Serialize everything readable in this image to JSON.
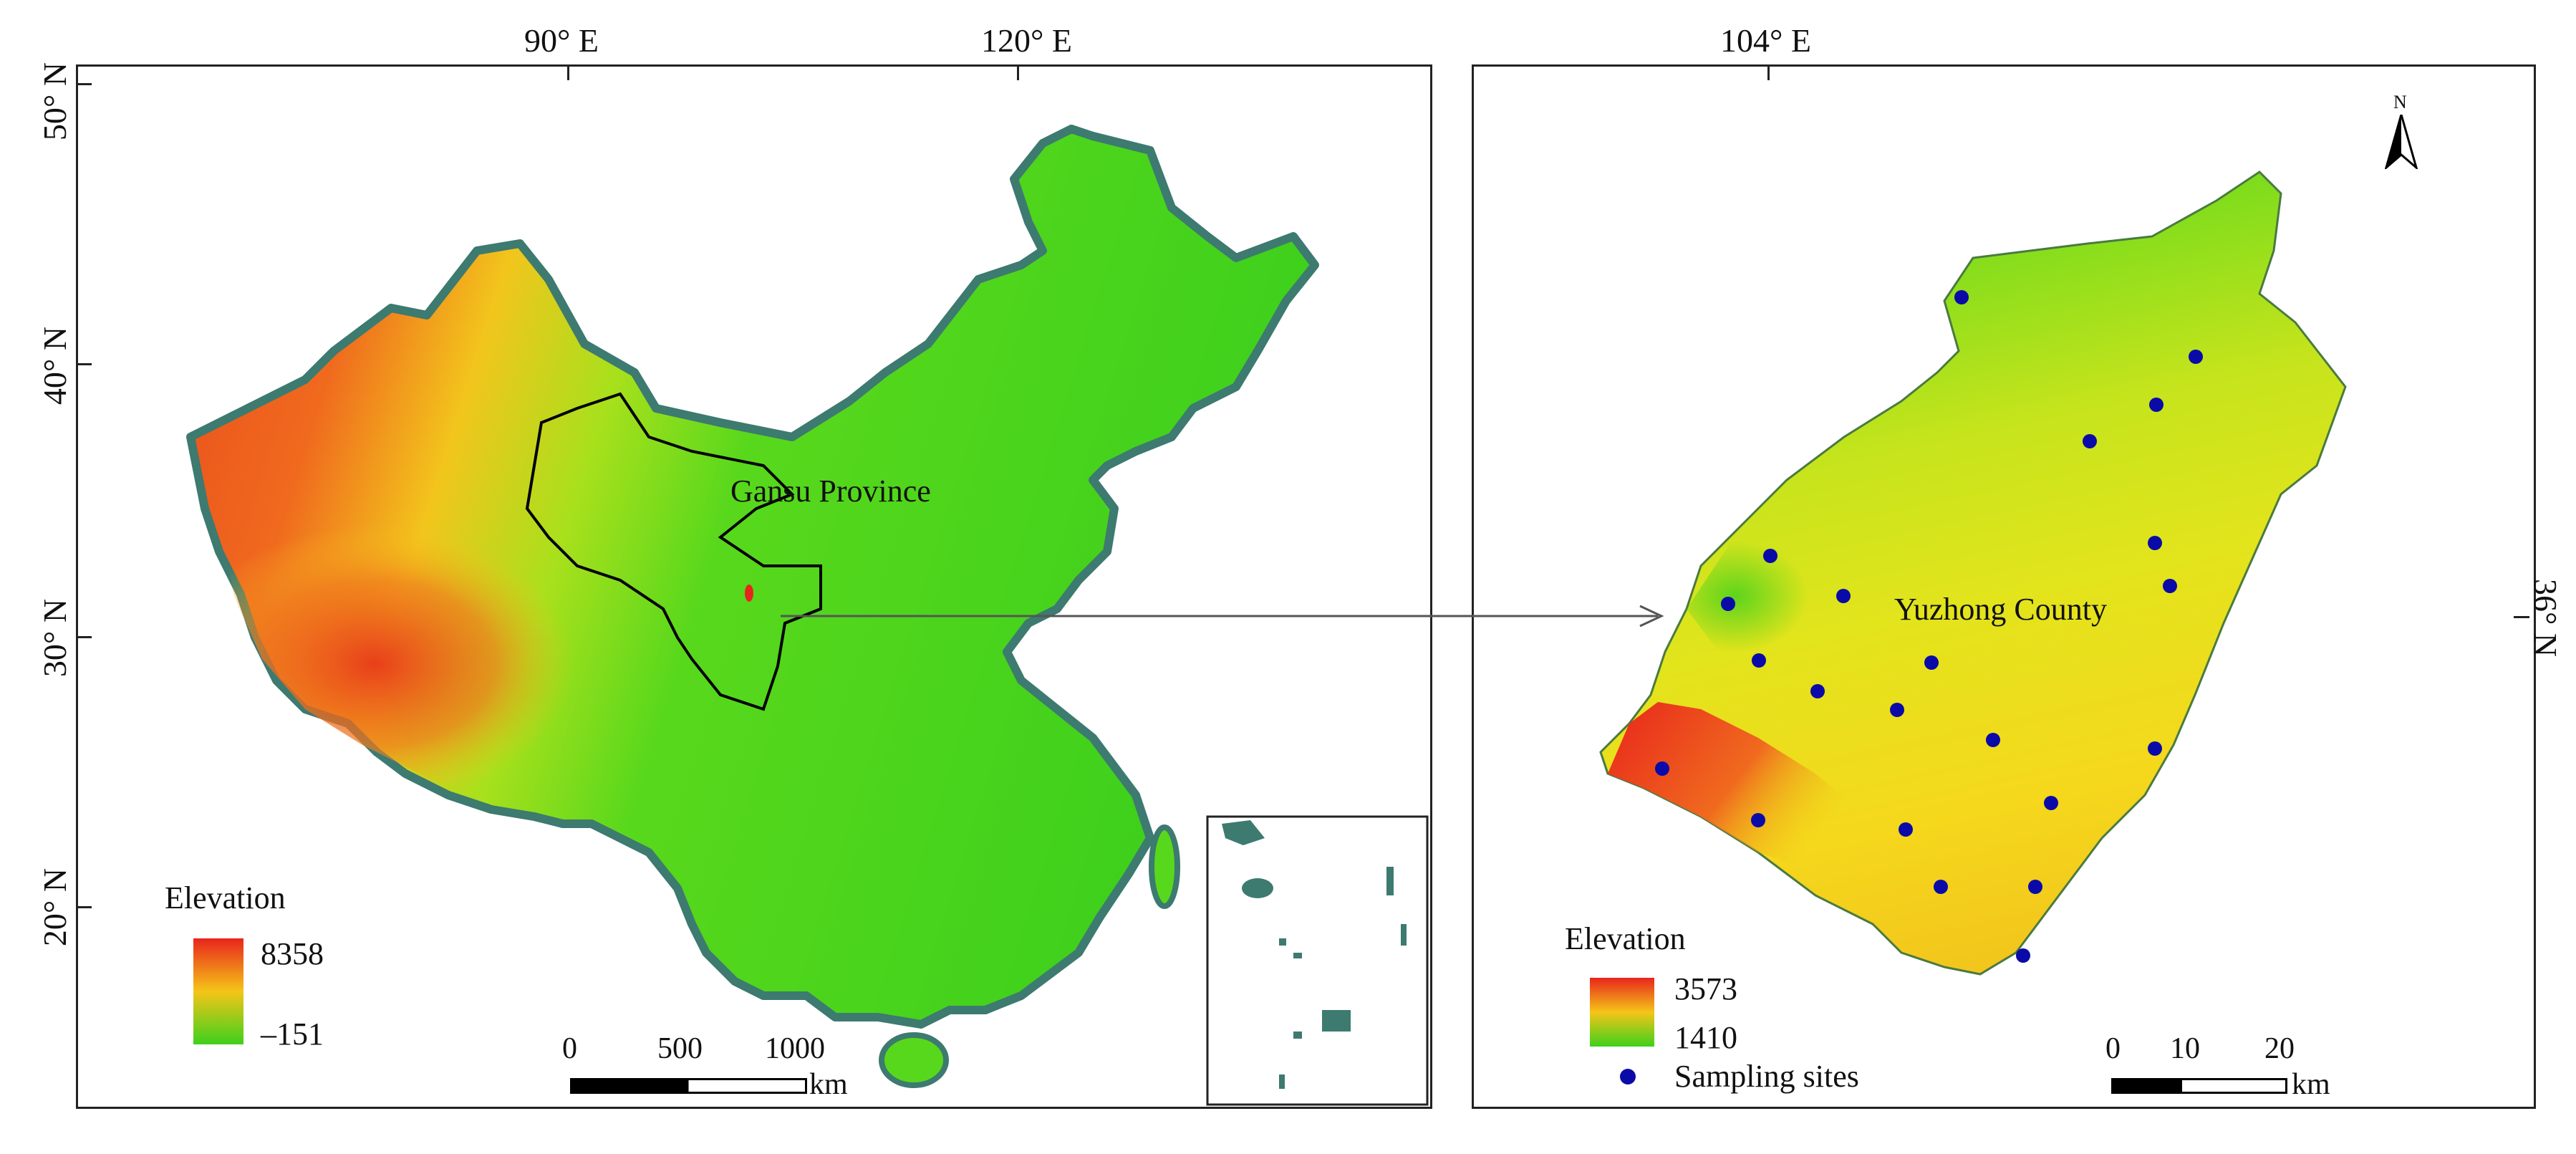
{
  "left_map": {
    "coords_top": [
      "90° E",
      "120° E"
    ],
    "coords_left": [
      "50° N",
      "40° N",
      "30° N",
      "20° N"
    ],
    "province_label": "Gansu Province",
    "legend": {
      "title": "Elevation",
      "max": "8358",
      "min": "–151"
    },
    "scale": {
      "ticks": [
        "0",
        "500",
        "1000"
      ],
      "unit": "km"
    },
    "colors": {
      "high": "#e8251c",
      "mid": "#f5c518",
      "low": "#3ed01c",
      "border": "#3d7a70"
    }
  },
  "right_map": {
    "coords_top": [
      "104° E"
    ],
    "coords_right": [
      "36° N"
    ],
    "north_label": "N",
    "county_label": "Yuzhong County",
    "legend": {
      "title": "Elevation",
      "max": "3573",
      "min": "1410",
      "sites_label": "Sampling sites"
    },
    "scale": {
      "ticks": [
        "0",
        "10",
        "20"
      ],
      "unit": "km"
    },
    "colors": {
      "sites": "#0a0aa8"
    }
  }
}
